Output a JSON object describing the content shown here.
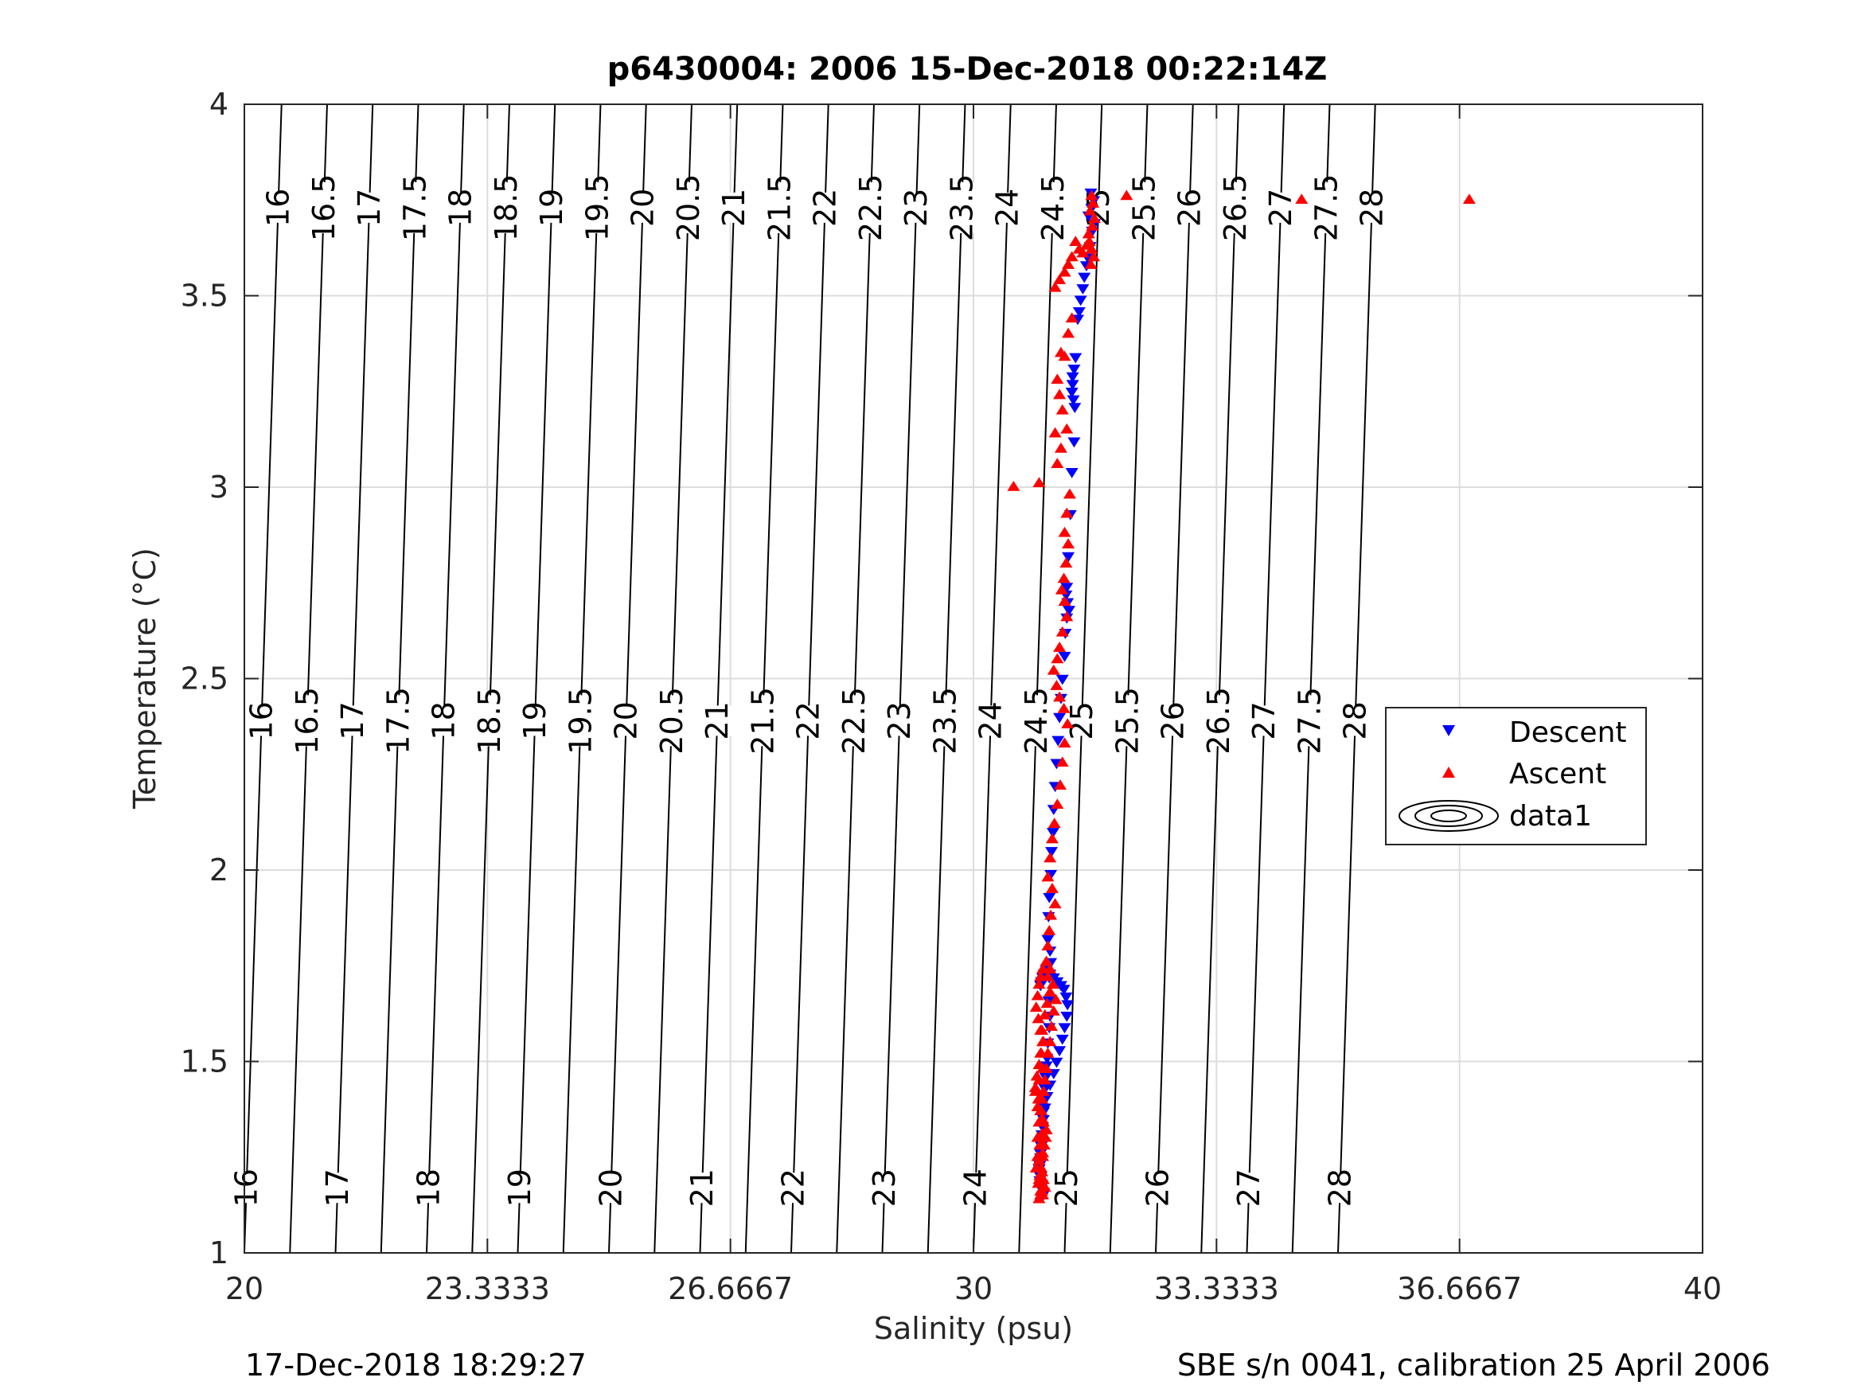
{
  "figure": {
    "title": "p6430004:  2006 15-Dec-2018 00:22:14Z",
    "footer_left": "17-Dec-2018 18:29:27",
    "footer_right": "SBE s/n 0041, calibration 25 April 2006"
  },
  "chart_data": {
    "type": "scatter",
    "title": "p6430004:  2006 15-Dec-2018 00:22:14Z",
    "xlabel": "Salinity (psu)",
    "ylabel": "Temperature (°C)",
    "xlim": [
      20,
      40
    ],
    "ylim": [
      1,
      4
    ],
    "xticks": [
      20,
      23.3333,
      26.6667,
      30,
      33.3333,
      36.6667,
      40
    ],
    "xtick_labels": [
      "20",
      "23.3333",
      "26.6667",
      "30",
      "33.3333",
      "36.6667",
      "40"
    ],
    "yticks": [
      1,
      1.5,
      2,
      2.5,
      3,
      3.5,
      4
    ],
    "ytick_labels": [
      "1",
      "1.5",
      "2",
      "2.5",
      "3",
      "3.5",
      "4"
    ],
    "grid": true,
    "legend_position": "right",
    "contour_levels": [
      16,
      16.5,
      17,
      17.5,
      18,
      18.5,
      19,
      19.5,
      20,
      20.5,
      21,
      21.5,
      22,
      22.5,
      23,
      23.5,
      24,
      24.5,
      25,
      25.5,
      26,
      26.5,
      27,
      27.5,
      28
    ],
    "contour_label_rows": [
      {
        "y": 3.73,
        "levels": [
          16,
          16.5,
          17,
          17.5,
          18,
          18.5,
          19,
          19.5,
          20,
          20.5,
          21,
          21.5,
          22,
          22.5,
          23,
          23.5,
          24,
          24.5,
          25,
          25.5,
          26,
          26.5,
          27,
          27.5,
          28
        ]
      },
      {
        "y": 2.39,
        "levels": [
          16,
          16.5,
          17,
          17.5,
          18,
          18.5,
          19,
          19.5,
          20,
          20.5,
          21,
          21.5,
          22,
          22.5,
          23,
          23.5,
          24,
          24.5,
          25,
          25.5,
          26,
          26.5,
          27,
          27.5,
          28
        ]
      },
      {
        "y": 1.17,
        "levels": [
          16,
          17,
          18,
          19,
          20,
          21,
          22,
          23,
          24,
          25,
          26,
          27,
          28
        ]
      }
    ],
    "series": [
      {
        "name": "Descent",
        "color": "#0000ff",
        "marker": "triangle-down",
        "x": [
          31.61,
          31.65,
          31.62,
          31.58,
          31.66,
          31.63,
          31.6,
          31.57,
          31.55,
          31.52,
          31.5,
          31.47,
          31.45,
          31.43,
          31.4,
          31.38,
          31.36,
          31.36,
          31.35,
          31.37,
          31.39,
          31.38,
          31.35,
          31.33,
          31.3,
          31.28,
          31.27,
          31.29,
          31.31,
          31.28,
          31.26,
          31.25,
          31.22,
          31.2,
          31.18,
          31.16,
          31.14,
          31.12,
          31.1,
          31.09,
          31.07,
          31.06,
          31.04,
          31.03,
          31.02,
          31.05,
          31.06,
          31.04,
          31.03,
          31.05,
          31.04,
          31.02,
          31.01,
          31.0,
          30.99,
          30.98,
          30.97,
          30.96,
          30.95,
          30.94,
          30.93,
          30.92,
          30.91,
          30.92,
          30.94,
          30.96,
          30.95,
          30.93,
          30.91,
          30.9,
          30.92,
          30.93,
          30.94,
          30.96,
          30.98,
          31.01,
          31.05,
          31.1,
          31.14,
          31.18,
          31.22,
          31.25,
          31.28,
          31.29,
          31.27,
          31.24,
          31.2,
          31.15,
          31.1,
          31.05,
          31.0,
          30.97,
          30.95,
          30.93,
          30.92
        ],
        "y": [
          3.77,
          3.75,
          3.73,
          3.71,
          3.69,
          3.67,
          3.63,
          3.6,
          3.58,
          3.55,
          3.52,
          3.49,
          3.46,
          3.44,
          3.34,
          3.31,
          3.29,
          3.27,
          3.25,
          3.23,
          3.21,
          3.12,
          3.04,
          2.93,
          2.82,
          2.74,
          2.72,
          2.7,
          2.68,
          2.66,
          2.62,
          2.56,
          2.5,
          2.45,
          2.4,
          2.34,
          2.28,
          2.22,
          2.16,
          2.1,
          2.05,
          1.99,
          1.93,
          1.88,
          1.82,
          1.79,
          1.76,
          1.72,
          1.66,
          1.62,
          1.59,
          1.55,
          1.51,
          1.49,
          1.46,
          1.43,
          1.4,
          1.37,
          1.33,
          1.31,
          1.29,
          1.26,
          1.23,
          1.2,
          1.18,
          1.16,
          1.15,
          1.17,
          1.19,
          1.22,
          1.25,
          1.28,
          1.31,
          1.35,
          1.38,
          1.41,
          1.44,
          1.47,
          1.5,
          1.53,
          1.56,
          1.59,
          1.62,
          1.65,
          1.67,
          1.69,
          1.7,
          1.71,
          1.72,
          1.73,
          1.74,
          1.73,
          1.72,
          1.71,
          1.7
        ]
      },
      {
        "name": "Ascent",
        "color": "#ff0000",
        "marker": "triangle-up",
        "x": [
          36.8,
          34.5,
          32.1,
          31.62,
          31.64,
          31.6,
          31.66,
          31.63,
          31.58,
          31.59,
          31.62,
          31.65,
          31.61,
          31.55,
          31.5,
          31.45,
          31.4,
          31.35,
          31.3,
          31.25,
          31.18,
          31.12,
          31.35,
          31.3,
          31.2,
          31.25,
          31.15,
          31.18,
          31.22,
          31.28,
          31.12,
          31.2,
          31.15,
          30.55,
          30.9,
          31.32,
          31.28,
          31.25,
          31.3,
          31.27,
          31.24,
          31.21,
          31.25,
          31.28,
          31.22,
          31.18,
          31.15,
          31.1,
          31.14,
          31.18,
          31.24,
          31.29,
          31.25,
          31.22,
          31.19,
          31.15,
          31.11,
          31.08,
          31.05,
          31.02,
          31.08,
          31.12,
          31.06,
          31.04,
          31.02,
          31.0,
          31.05,
          31.09,
          31.13,
          31.1,
          31.07,
          31.05,
          31.02,
          31.0,
          30.98,
          30.96,
          30.94,
          30.92,
          30.9,
          30.88,
          30.92,
          30.95,
          30.93,
          30.91,
          30.89,
          30.92,
          30.95,
          30.98,
          30.96,
          30.94,
          30.9,
          30.95,
          30.97,
          30.99,
          31.0,
          30.94,
          30.88,
          30.85,
          30.9,
          30.95,
          30.92,
          30.96,
          30.94,
          30.98,
          31.01,
          31.05,
          31.02,
          30.95,
          30.92,
          30.9,
          30.88,
          30.86,
          30.89,
          30.92,
          30.95,
          30.93,
          30.9,
          30.87,
          30.85,
          30.89,
          30.93,
          30.96,
          30.94,
          30.91,
          30.88,
          30.86,
          30.9,
          30.94,
          30.92,
          30.9
        ],
        "y": [
          3.75,
          3.75,
          3.76,
          3.76,
          3.74,
          3.72,
          3.7,
          3.68,
          3.66,
          3.64,
          3.62,
          3.6,
          3.58,
          3.63,
          3.61,
          3.62,
          3.64,
          3.6,
          3.58,
          3.56,
          3.54,
          3.52,
          3.44,
          3.4,
          3.35,
          3.34,
          3.28,
          3.24,
          3.2,
          3.15,
          3.14,
          3.1,
          3.06,
          3.0,
          3.01,
          2.98,
          2.93,
          2.88,
          2.85,
          2.8,
          2.76,
          2.73,
          2.7,
          2.66,
          2.62,
          2.58,
          2.55,
          2.52,
          2.48,
          2.45,
          2.42,
          2.38,
          2.33,
          2.28,
          2.22,
          2.17,
          2.12,
          2.08,
          2.03,
          1.98,
          1.95,
          1.91,
          1.88,
          1.84,
          1.8,
          1.76,
          1.74,
          1.7,
          1.66,
          1.63,
          1.59,
          1.55,
          1.52,
          1.48,
          1.45,
          1.42,
          1.4,
          1.37,
          1.34,
          1.3,
          1.28,
          1.25,
          1.22,
          1.2,
          1.18,
          1.16,
          1.15,
          1.17,
          1.19,
          1.21,
          1.24,
          1.26,
          1.28,
          1.3,
          1.32,
          1.35,
          1.38,
          1.42,
          1.45,
          1.48,
          1.52,
          1.55,
          1.58,
          1.62,
          1.65,
          1.68,
          1.72,
          1.74,
          1.72,
          1.7,
          1.67,
          1.64,
          1.61,
          1.58,
          1.55,
          1.52,
          1.49,
          1.46,
          1.43,
          1.4,
          1.37,
          1.34,
          1.31,
          1.28,
          1.25,
          1.22,
          1.19,
          1.16,
          1.15,
          1.14
        ]
      }
    ],
    "legend": [
      "Descent",
      "Ascent",
      "data1"
    ]
  }
}
